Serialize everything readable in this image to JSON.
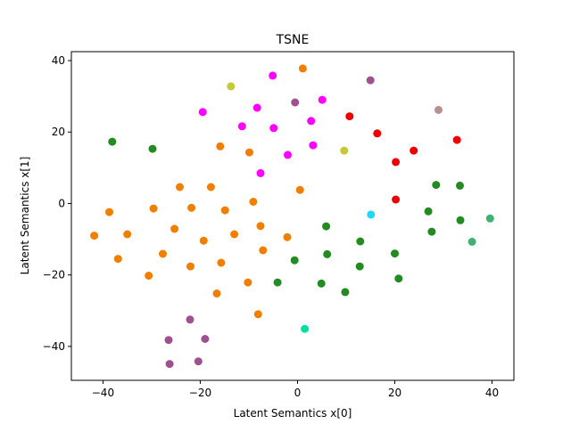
{
  "chart_data": {
    "type": "scatter",
    "title": "TSNE",
    "xlabel": "Latent Semantics x[0]",
    "ylabel": "Latent Semantics x[1]",
    "xlim": [
      -46.5,
      44.5
    ],
    "ylim": [
      -49.5,
      42.5
    ],
    "xticks": [
      -40,
      -20,
      0,
      20,
      40
    ],
    "yticks": [
      -40,
      -20,
      0,
      20,
      40
    ],
    "grid": false,
    "legend": "none",
    "colors": {
      "orange": "#f07f00",
      "green": "#228b22",
      "magenta": "#ff00ff",
      "purple": "#a0508f",
      "red": "#ee0000",
      "olive": "#c8c832",
      "cyan": "#20d8ff",
      "teal": "#00e0a0",
      "tan": "#b89090",
      "seagreen": "#3cb371"
    },
    "points": [
      {
        "x": -41.8,
        "y": -9.0,
        "c": "orange"
      },
      {
        "x": -38.7,
        "y": -2.4,
        "c": "orange"
      },
      {
        "x": -36.9,
        "y": -15.5,
        "c": "orange"
      },
      {
        "x": -35.0,
        "y": -8.6,
        "c": "orange"
      },
      {
        "x": -30.6,
        "y": -20.2,
        "c": "orange"
      },
      {
        "x": -29.6,
        "y": -1.4,
        "c": "orange"
      },
      {
        "x": -27.7,
        "y": -14.1,
        "c": "orange"
      },
      {
        "x": -25.3,
        "y": -7.1,
        "c": "orange"
      },
      {
        "x": -24.2,
        "y": 4.6,
        "c": "orange"
      },
      {
        "x": -22.0,
        "y": -17.6,
        "c": "orange"
      },
      {
        "x": -21.8,
        "y": -1.2,
        "c": "orange"
      },
      {
        "x": -19.3,
        "y": -10.4,
        "c": "orange"
      },
      {
        "x": -17.8,
        "y": 4.6,
        "c": "orange"
      },
      {
        "x": -16.6,
        "y": -25.2,
        "c": "orange"
      },
      {
        "x": -15.9,
        "y": 16.0,
        "c": "orange"
      },
      {
        "x": -15.7,
        "y": -16.6,
        "c": "orange"
      },
      {
        "x": -14.9,
        "y": -1.9,
        "c": "orange"
      },
      {
        "x": -13.0,
        "y": -8.6,
        "c": "orange"
      },
      {
        "x": -10.2,
        "y": -22.1,
        "c": "orange"
      },
      {
        "x": -9.9,
        "y": 14.3,
        "c": "orange"
      },
      {
        "x": -9.1,
        "y": 0.5,
        "c": "orange"
      },
      {
        "x": -8.1,
        "y": -31.0,
        "c": "orange"
      },
      {
        "x": -7.6,
        "y": -6.3,
        "c": "orange"
      },
      {
        "x": -7.1,
        "y": -13.1,
        "c": "orange"
      },
      {
        "x": -2.1,
        "y": -9.4,
        "c": "orange"
      },
      {
        "x": 0.5,
        "y": 3.8,
        "c": "orange"
      },
      {
        "x": 1.1,
        "y": 37.8,
        "c": "orange"
      },
      {
        "x": -38.1,
        "y": 17.3,
        "c": "green"
      },
      {
        "x": -29.8,
        "y": 15.3,
        "c": "green"
      },
      {
        "x": -4.1,
        "y": -22.1,
        "c": "green"
      },
      {
        "x": -0.6,
        "y": -15.9,
        "c": "green"
      },
      {
        "x": 4.9,
        "y": -22.4,
        "c": "green"
      },
      {
        "x": 5.9,
        "y": -6.4,
        "c": "green"
      },
      {
        "x": 6.1,
        "y": -14.2,
        "c": "green"
      },
      {
        "x": 9.8,
        "y": -24.8,
        "c": "green"
      },
      {
        "x": 12.8,
        "y": -17.6,
        "c": "green"
      },
      {
        "x": 12.9,
        "y": -10.6,
        "c": "green"
      },
      {
        "x": 20.0,
        "y": -14.0,
        "c": "green"
      },
      {
        "x": 20.8,
        "y": -21.0,
        "c": "green"
      },
      {
        "x": 26.9,
        "y": -2.2,
        "c": "green"
      },
      {
        "x": 27.6,
        "y": -7.9,
        "c": "green"
      },
      {
        "x": 28.5,
        "y": 5.2,
        "c": "green"
      },
      {
        "x": 33.4,
        "y": 5.0,
        "c": "green"
      },
      {
        "x": 33.5,
        "y": -4.7,
        "c": "green"
      },
      {
        "x": -19.5,
        "y": 25.6,
        "c": "magenta"
      },
      {
        "x": -11.4,
        "y": 21.6,
        "c": "magenta"
      },
      {
        "x": -8.3,
        "y": 26.8,
        "c": "magenta"
      },
      {
        "x": -7.6,
        "y": 8.5,
        "c": "magenta"
      },
      {
        "x": -5.1,
        "y": 35.8,
        "c": "magenta"
      },
      {
        "x": -4.9,
        "y": 21.1,
        "c": "magenta"
      },
      {
        "x": -2.0,
        "y": 13.6,
        "c": "magenta"
      },
      {
        "x": 2.8,
        "y": 23.1,
        "c": "magenta"
      },
      {
        "x": 3.2,
        "y": 16.3,
        "c": "magenta"
      },
      {
        "x": 5.1,
        "y": 29.0,
        "c": "magenta"
      },
      {
        "x": -0.5,
        "y": 28.3,
        "c": "purple"
      },
      {
        "x": 15.0,
        "y": 34.5,
        "c": "purple"
      },
      {
        "x": -26.5,
        "y": -38.2,
        "c": "purple"
      },
      {
        "x": -26.3,
        "y": -44.9,
        "c": "purple"
      },
      {
        "x": -22.1,
        "y": -32.5,
        "c": "purple"
      },
      {
        "x": -19.0,
        "y": -37.9,
        "c": "purple"
      },
      {
        "x": -20.4,
        "y": -44.2,
        "c": "purple"
      },
      {
        "x": 10.7,
        "y": 24.4,
        "c": "red"
      },
      {
        "x": 16.4,
        "y": 19.6,
        "c": "red"
      },
      {
        "x": 20.2,
        "y": 11.6,
        "c": "red"
      },
      {
        "x": 20.2,
        "y": 1.1,
        "c": "red"
      },
      {
        "x": 23.9,
        "y": 14.8,
        "c": "red"
      },
      {
        "x": 32.8,
        "y": 17.8,
        "c": "red"
      },
      {
        "x": -13.7,
        "y": 32.8,
        "c": "olive"
      },
      {
        "x": 9.6,
        "y": 14.8,
        "c": "olive"
      },
      {
        "x": 15.1,
        "y": -3.1,
        "c": "cyan"
      },
      {
        "x": 1.5,
        "y": -35.1,
        "c": "teal"
      },
      {
        "x": 29.0,
        "y": 26.2,
        "c": "tan"
      },
      {
        "x": 35.9,
        "y": -10.7,
        "c": "seagreen"
      },
      {
        "x": 39.6,
        "y": -4.2,
        "c": "seagreen"
      }
    ]
  }
}
